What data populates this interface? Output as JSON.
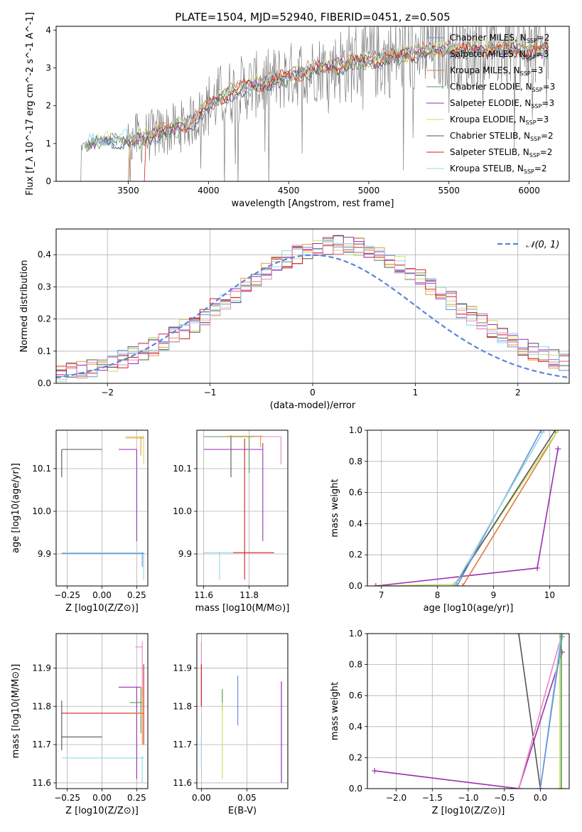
{
  "figure": {
    "title": "PLATE=1504, MJD=52940, FIBERID=0451, z=0.505"
  },
  "colors": {
    "Chabrier MILES": "#6a8fd8",
    "Salpeter MILES": "#ee9a2e",
    "Kroupa MILES": "#e07a3a",
    "Chabrier ELODIE": "#5a9a5a",
    "Salpeter ELODIE": "#9a2eb0",
    "Kroupa ELODIE": "#c8e06a",
    "Chabrier STELIB": "#555555",
    "Salpeter STELIB": "#d02020",
    "Kroupa STELIB": "#8fd8e6",
    "data": "#808080",
    "gauss": "#5b84dc",
    "pink": "#e888c0"
  },
  "chart_data": [
    {
      "id": "spectrum",
      "type": "line",
      "title": "PLATE=1504, MJD=52940, FIBERID=0451, z=0.505",
      "xlabel": "wavelength [Angstrom, rest frame]",
      "ylabel": "Flux [f_λ 10^-17 erg cm^-2 s^-1 A^-1]",
      "xlim": [
        3050,
        6250
      ],
      "ylim": [
        0,
        4.1
      ],
      "xticks": [
        3500,
        4000,
        4500,
        5000,
        5500,
        6000
      ],
      "yticks": [
        0,
        1,
        2,
        3,
        4
      ],
      "grid": false,
      "legend_position": "upper-right",
      "series": [
        {
          "name": "Chabrier MILES, N_SSP=2",
          "label_main": "Chabrier MILES, N",
          "label_sub": "SSP",
          "label_tail": "=2"
        },
        {
          "name": "Salpeter MILES, N_SSP=3",
          "label_main": "Salpeter MILES, N",
          "label_sub": "SSP",
          "label_tail": "=3"
        },
        {
          "name": "Kroupa MILES, N_SSP=3",
          "label_main": "Kroupa MILES, N",
          "label_sub": "SSP",
          "label_tail": "=3"
        },
        {
          "name": "Chabrier ELODIE, N_SSP=3",
          "label_main": "Chabrier ELODIE, N",
          "label_sub": "SSP",
          "label_tail": "=3"
        },
        {
          "name": "Salpeter ELODIE, N_SSP=3",
          "label_main": "Salpeter ELODIE, N",
          "label_sub": "SSP",
          "label_tail": "=3"
        },
        {
          "name": "Kroupa ELODIE, N_SSP=3",
          "label_main": "Kroupa ELODIE, N",
          "label_sub": "SSP",
          "label_tail": "=3"
        },
        {
          "name": "Chabrier STELIB, N_SSP=2",
          "label_main": "Chabrier STELIB, N",
          "label_sub": "SSP",
          "label_tail": "=2"
        },
        {
          "name": "Salpeter STELIB, N_SSP=2",
          "label_main": "Salpeter STELIB, N",
          "label_sub": "SSP",
          "label_tail": "=2"
        },
        {
          "name": "Kroupa STELIB, N_SSP=2",
          "label_main": "Kroupa STELIB, N",
          "label_sub": "SSP",
          "label_tail": "=2"
        }
      ],
      "continuum": {
        "x": [
          3200,
          3300,
          3400,
          3500,
          3600,
          3700,
          3800,
          3900,
          4000,
          4100,
          4200,
          4300,
          4400,
          4500,
          4600,
          4700,
          4800,
          4900,
          5000,
          5100,
          5200,
          5300,
          5400,
          5500,
          5600,
          5700,
          5800,
          5900,
          6000,
          6100
        ],
        "y": [
          0.9,
          1.05,
          1.1,
          1.1,
          1.15,
          1.3,
          1.4,
          1.6,
          2.0,
          2.3,
          2.45,
          2.55,
          2.65,
          2.8,
          2.9,
          3.0,
          3.05,
          3.15,
          3.2,
          3.25,
          3.35,
          3.4,
          3.45,
          3.5,
          3.45,
          3.5,
          3.5,
          3.5,
          3.45,
          3.5
        ]
      }
    },
    {
      "id": "residuals",
      "type": "line",
      "xlabel": "(data-model)/error",
      "ylabel": "Normed distribution",
      "xlim": [
        -2.5,
        2.5
      ],
      "ylim": [
        0,
        0.48
      ],
      "xticks": [
        -2,
        -1,
        0,
        1,
        2
      ],
      "yticks": [
        0.0,
        0.1,
        0.2,
        0.3,
        0.4
      ],
      "grid": true,
      "legend_position": "upper-right",
      "legend": "N(0,1)",
      "gauss_label": "𝒩(0, 1)",
      "bin_width": 0.1
    },
    {
      "id": "age-vs-Z",
      "type": "scatter",
      "xlabel": "Z [log10(Z/Z⊙)]",
      "ylabel": "age [log10(age/yr)]",
      "xlim": [
        -0.33,
        0.33
      ],
      "ylim": [
        9.825,
        10.19
      ],
      "xticks": [
        -0.25,
        0.0,
        0.25
      ],
      "yticks": [
        9.9,
        10.0,
        10.1
      ],
      "grid": true
    },
    {
      "id": "age-vs-mass",
      "type": "scatter",
      "xlabel": "mass [log10(M/M⊙)]",
      "xlim": [
        11.57,
        11.97
      ],
      "ylim": [
        9.825,
        10.19
      ],
      "xticks": [
        11.6,
        11.8
      ],
      "yticks": [
        9.9,
        10.0,
        10.1
      ],
      "grid": true
    },
    {
      "id": "massweight-vs-age",
      "type": "line",
      "xlabel": "age [log10(age/yr)]",
      "ylabel": "mass weight",
      "xlim": [
        6.75,
        10.35
      ],
      "ylim": [
        0,
        1
      ],
      "xticks": [
        7,
        8,
        9,
        10
      ],
      "yticks": [
        0.0,
        0.2,
        0.4,
        0.6,
        0.8,
        1.0
      ],
      "grid": true
    },
    {
      "id": "mass-vs-Z",
      "type": "scatter",
      "xlabel": "Z [log10(Z/Z⊙)]",
      "ylabel": "mass [log10(M/M⊙)]",
      "xlim": [
        -0.33,
        0.33
      ],
      "ylim": [
        11.585,
        11.99
      ],
      "xticks": [
        -0.25,
        0.0,
        0.25
      ],
      "yticks": [
        11.6,
        11.7,
        11.8,
        11.9
      ],
      "grid": true
    },
    {
      "id": "mass-vs-ebv",
      "type": "scatter",
      "xlabel": "E(B-V)",
      "xlim": [
        -0.005,
        0.095
      ],
      "ylim": [
        11.585,
        11.99
      ],
      "xticks": [
        0.0,
        0.05
      ],
      "yticks": [
        11.6,
        11.7,
        11.8,
        11.9
      ],
      "grid": true
    },
    {
      "id": "massweight-vs-Z",
      "type": "line",
      "xlabel": "Z [log10(Z/Z⊙)]",
      "ylabel": "mass weight",
      "xlim": [
        -2.4,
        0.4
      ],
      "ylim": [
        0,
        1
      ],
      "xticks": [
        -2.0,
        -1.5,
        -1.0,
        -0.5,
        0.0
      ],
      "yticks": [
        0.0,
        0.2,
        0.4,
        0.6,
        0.8,
        1.0
      ],
      "grid": true
    }
  ]
}
